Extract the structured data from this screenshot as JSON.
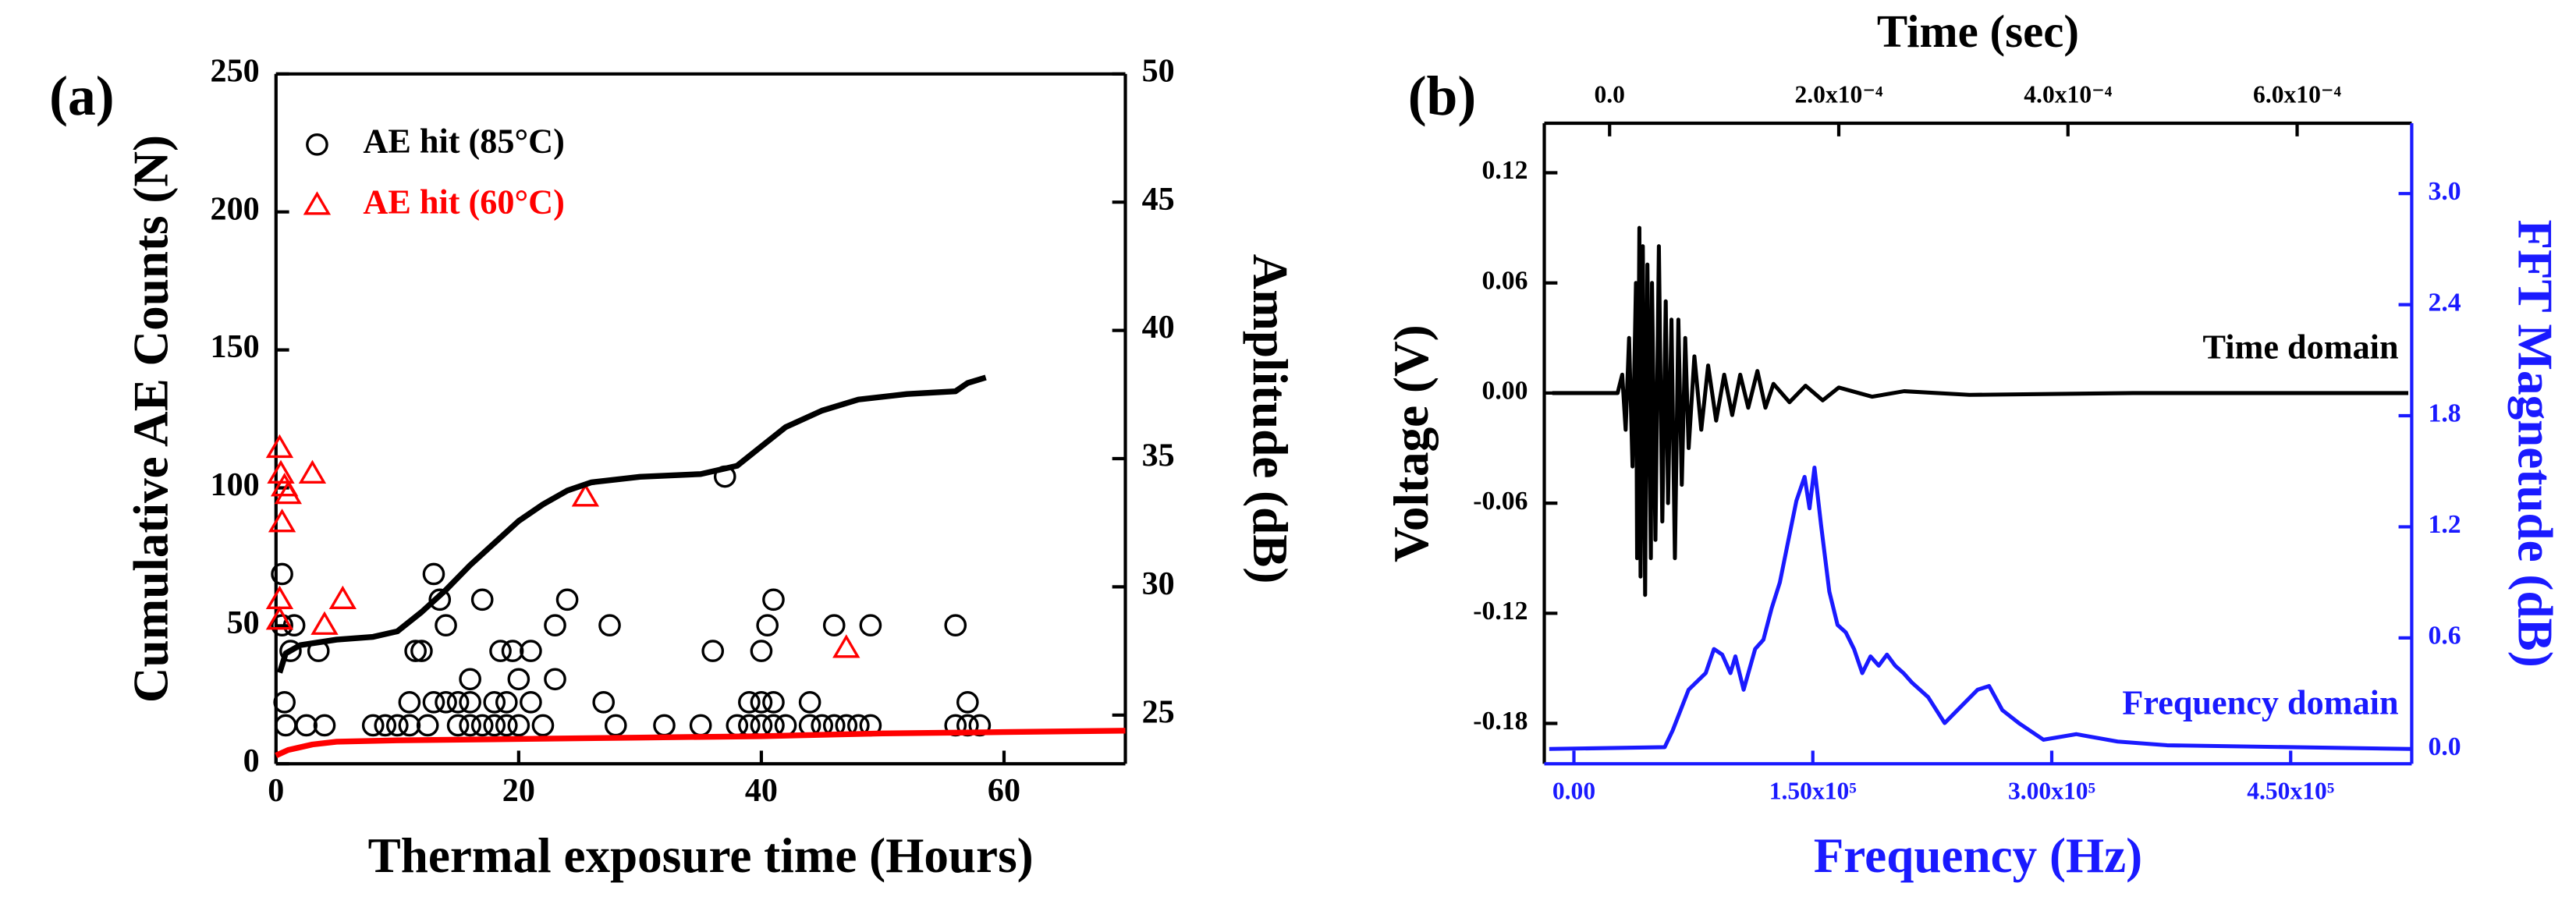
{
  "chart_data": [
    {
      "type": "scatter",
      "panel_label": "(a)",
      "xlabel": "Thermal exposure time (Hours)",
      "ylabel": "Cumulative AE Counts (N)",
      "y2label": "Amplitude (dB)",
      "xlim": [
        0,
        70
      ],
      "xticks": [
        0,
        20,
        40,
        60
      ],
      "ylim": [
        0,
        250
      ],
      "yticks": [
        0,
        50,
        100,
        150,
        200,
        250
      ],
      "y2lim": [
        23.1,
        50
      ],
      "y2ticks": [
        25,
        30,
        35,
        40,
        45,
        50
      ],
      "legend": "upper left",
      "series": [
        {
          "name": "AE hit (85°C)",
          "color": "#000000",
          "marker": "circle",
          "axis": "y2",
          "x": [
            0.5,
            0.5,
            0.7,
            0.8,
            1.2,
            1.5,
            2.5,
            3.5,
            4,
            8,
            9,
            10,
            11,
            11,
            11.5,
            12,
            12.5,
            13,
            13,
            13.5,
            14,
            14,
            15,
            15,
            16,
            16,
            16,
            17,
            17,
            18,
            18,
            18.5,
            19,
            19,
            19.5,
            20,
            20,
            21,
            21,
            22,
            23,
            23,
            24,
            27,
            27.5,
            28,
            32,
            35,
            36,
            37,
            38,
            39,
            39,
            40,
            40,
            40,
            40.5,
            41,
            41,
            41,
            42,
            44,
            44,
            45,
            46,
            46,
            47,
            48,
            49,
            49,
            56,
            56,
            57,
            57,
            58
          ],
          "values": [
            30.5,
            28.5,
            25.5,
            24.6,
            27.5,
            28.5,
            24.6,
            27.5,
            24.6,
            24.6,
            24.6,
            24.6,
            25.5,
            24.6,
            27.5,
            27.5,
            24.6,
            25.5,
            30.5,
            29.5,
            28.5,
            25.5,
            25.5,
            24.6,
            26.4,
            25.5,
            24.6,
            24.6,
            29.5,
            25.5,
            24.6,
            27.5,
            25.5,
            24.6,
            27.5,
            24.6,
            26.4,
            25.5,
            27.5,
            24.6,
            26.4,
            28.5,
            29.5,
            25.5,
            28.5,
            24.6,
            24.6,
            24.6,
            27.5,
            34.3,
            24.6,
            25.5,
            24.6,
            25.5,
            24.6,
            27.5,
            28.5,
            25.5,
            24.6,
            29.5,
            24.6,
            25.5,
            24.6,
            24.6,
            28.5,
            24.6,
            24.6,
            24.6,
            24.6,
            28.5,
            24.6,
            28.5,
            25.5,
            24.6,
            24.6
          ]
        },
        {
          "name": "AE hit (60°C)",
          "color": "#ff0000",
          "marker": "triangle",
          "axis": "y2",
          "x": [
            0.3,
            0.4,
            0.5,
            0.7,
            1,
            0.3,
            0.3,
            4,
            3,
            5.5,
            25.5,
            47
          ],
          "values": [
            35.4,
            34.4,
            32.5,
            33.9,
            33.6,
            29.5,
            28.7,
            28.5,
            34.4,
            29.5,
            33.5,
            27.6
          ]
        },
        {
          "color": "#000000",
          "x": [
            0.3,
            0.8,
            2,
            5,
            8,
            10,
            12,
            14,
            16,
            18,
            20,
            22,
            24,
            26,
            30,
            35,
            38,
            40,
            42,
            45,
            48,
            52,
            56,
            57,
            58.5
          ],
          "values": [
            33,
            40,
            43,
            45,
            46,
            48,
            55,
            63,
            72,
            80,
            88,
            94,
            99,
            102,
            104,
            105,
            108,
            115,
            122,
            128,
            132,
            134,
            135,
            138,
            140
          ]
        },
        {
          "color": "#ff0000",
          "x": [
            0,
            1,
            3,
            5,
            10,
            20,
            30,
            40,
            50,
            60,
            70
          ],
          "values": [
            3,
            5,
            7,
            8,
            8.5,
            9,
            9.5,
            10,
            11,
            11.5,
            12
          ]
        }
      ]
    },
    {
      "type": "line",
      "panel_label": "(b)",
      "x2label": "Time (sec)",
      "xlabel": "Frequency (Hz)",
      "ylabel": "Voltage (V)",
      "y2label": "FFT Magnetude (dB)",
      "axis_colors": {
        "x": "#1a1aff",
        "y2": "#1a1aff"
      },
      "xlim": [
        -18600,
        526000
      ],
      "xticks": [
        {
          "value": 0,
          "label": "0.00"
        },
        {
          "value": 150000,
          "label": "1.50x10⁵"
        },
        {
          "value": 300000,
          "label": "3.00x10⁵"
        },
        {
          "value": 450000,
          "label": "4.50x10⁵"
        }
      ],
      "x2lim": [
        -5.7e-05,
        0.0007
      ],
      "x2ticks": [
        {
          "value": 0,
          "label": "0.0"
        },
        {
          "value": 0.0002,
          "label": "2.0x10⁻⁴"
        },
        {
          "value": 0.0004,
          "label": "4.0x10⁻⁴"
        },
        {
          "value": 0.0006,
          "label": "6.0x10⁻⁴"
        }
      ],
      "ylim": [
        -0.202,
        0.147
      ],
      "yticks": [
        -0.18,
        -0.12,
        -0.06,
        {
          "value": 0,
          "label": "0.00"
        },
        0.06,
        0.12
      ],
      "y2lim": [
        -0.08,
        3.38
      ],
      "y2ticks": [
        {
          "value": 0,
          "label": "0.0"
        },
        0.6,
        1.2,
        1.8,
        2.4,
        {
          "value": 3,
          "label": "3.0"
        }
      ],
      "series": [
        {
          "name": "Time domain",
          "color": "#000000",
          "xaxis": "x2",
          "x": [
            -5e-05,
            7e-06,
            1.1e-05,
            1.4e-05,
            1.7e-05,
            2e-05,
            2.3e-05,
            2.4e-05,
            2.6e-05,
            2.7e-05,
            2.9e-05,
            3.1e-05,
            3.3e-05,
            3.6e-05,
            3.7e-05,
            4e-05,
            4.3e-05,
            4.6e-05,
            4.9e-05,
            5.1e-05,
            5.4e-05,
            5.7e-05,
            6e-05,
            6.3e-05,
            6.6e-05,
            6.9e-05,
            7.4e-05,
            8e-05,
            8.6e-05,
            9.3e-05,
            0.0001,
            0.000107,
            0.000114,
            0.000121,
            0.000129,
            0.000136,
            0.000143,
            0.000157,
            0.000171,
            0.000186,
            0.0002,
            0.000229,
            0.000257,
            0.000314,
            0.000457,
            0.000697
          ],
          "values": [
            0,
            0,
            0.01,
            -0.02,
            0.03,
            -0.04,
            0.06,
            -0.09,
            0.09,
            -0.1,
            0.08,
            -0.11,
            0.07,
            -0.09,
            0.06,
            -0.08,
            0.08,
            -0.07,
            0.05,
            -0.06,
            0.04,
            -0.09,
            0.04,
            -0.05,
            0.03,
            -0.03,
            0.02,
            -0.02,
            0.015,
            -0.015,
            0.01,
            -0.012,
            0.01,
            -0.008,
            0.012,
            -0.008,
            0.005,
            -0.005,
            0.004,
            -0.004,
            0.003,
            -0.002,
            0.001,
            -0.001,
            0,
            0
          ]
        },
        {
          "name": "Frequency domain",
          "color": "#1a1aff",
          "axis": "y2",
          "x": [
            -15500,
            57000,
            62000,
            72000,
            82760,
            87930,
            93100,
            98280,
            101380,
            106550,
            113790,
            118970,
            124140,
            129310,
            134480,
            139660,
            144830,
            147930,
            151040,
            155170,
            160350,
            165520,
            170690,
            175860,
            181040,
            186210,
            191380,
            196550,
            201720,
            206900,
            212070,
            222410,
            232760,
            243100,
            253450,
            260690,
            268970,
            279310,
            294830,
            315520,
            341380,
            372410,
            525520
          ],
          "values": [
            0,
            0.01,
            0.1,
            0.32,
            0.41,
            0.54,
            0.51,
            0.41,
            0.5,
            0.32,
            0.54,
            0.59,
            0.76,
            0.9,
            1.12,
            1.34,
            1.47,
            1.3,
            1.52,
            1.21,
            0.85,
            0.67,
            0.63,
            0.54,
            0.41,
            0.5,
            0.45,
            0.51,
            0.45,
            0.41,
            0.36,
            0.28,
            0.14,
            0.23,
            0.32,
            0.34,
            0.21,
            0.14,
            0.05,
            0.08,
            0.04,
            0.02,
            0
          ]
        }
      ]
    }
  ]
}
